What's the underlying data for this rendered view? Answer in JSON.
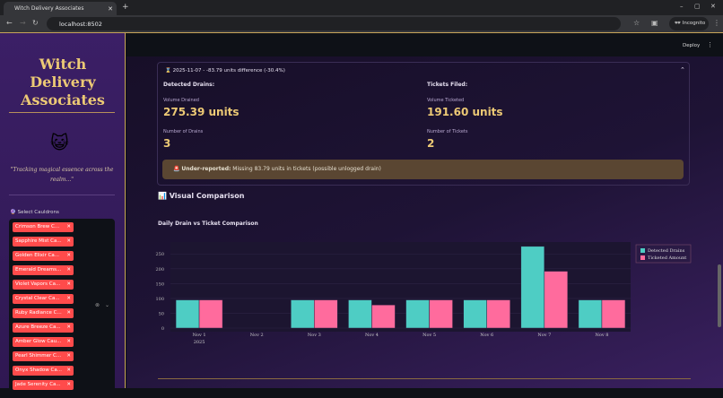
{
  "browser": {
    "tab_title": "Witch Delivery Associates",
    "url": "localhost:8502",
    "incognito": "Incognito"
  },
  "sidebar": {
    "title_lines": [
      "Witch",
      "Delivery",
      "Associates"
    ],
    "emoji": "😺",
    "quote": "\"Tracking magical essence across the realm...\"",
    "select_label": "🔮 Select Cauldrons",
    "chips": [
      "Crimson Brew C...",
      "Sapphire Mist Ca...",
      "Golden Elixir Ca...",
      "Emerald Dreams...",
      "Violet Vapors Ca...",
      "Crystal Clear Ca...",
      "Ruby Radiance C...",
      "Azure Breeze Ca...",
      "Amber Glow Cau...",
      "Pearl Shimmer C...",
      "Onyx Shadow Ca...",
      "Jade Serenity Ca..."
    ]
  },
  "header": {
    "deploy": "Deploy"
  },
  "expander": {
    "title": "⌛ 2025-11-07 - -83.79 units difference (-30.4%)",
    "left": {
      "heading": "Detected Drains:",
      "volume_label": "Volume Drained",
      "volume": "275.39 units",
      "count_label": "Number of Drains",
      "count": "3"
    },
    "right": {
      "heading": "Tickets Filed:",
      "volume_label": "Volume Ticketed",
      "volume": "191.60 units",
      "count_label": "Number of Tickets",
      "count": "2"
    },
    "warning_bold": "Under-reported:",
    "warning_text": " Missing 83.79 units in tickets (possible unlogged drain)"
  },
  "section_title": "📊 Visual Comparison",
  "chart_data": {
    "type": "bar",
    "title": "Daily Drain vs Ticket Comparison",
    "categories": [
      "Nov 1",
      "Nov 2",
      "Nov 3",
      "Nov 4",
      "Nov 5",
      "Nov 6",
      "Nov 7",
      "Nov 8"
    ],
    "year_label": "2025",
    "series": [
      {
        "name": "Detected Drains",
        "color": "#4ecdc4",
        "values": [
          95,
          0,
          95,
          95,
          95,
          95,
          275.39,
          95
        ]
      },
      {
        "name": "Ticketed Amount",
        "color": "#ff6b9d",
        "values": [
          95,
          0,
          95,
          78,
          95,
          95,
          191.6,
          95
        ]
      }
    ],
    "yticks": [
      0,
      50,
      100,
      150,
      200,
      250
    ],
    "ylim": [
      0,
      290
    ],
    "legend": "top-right",
    "grid": true
  }
}
